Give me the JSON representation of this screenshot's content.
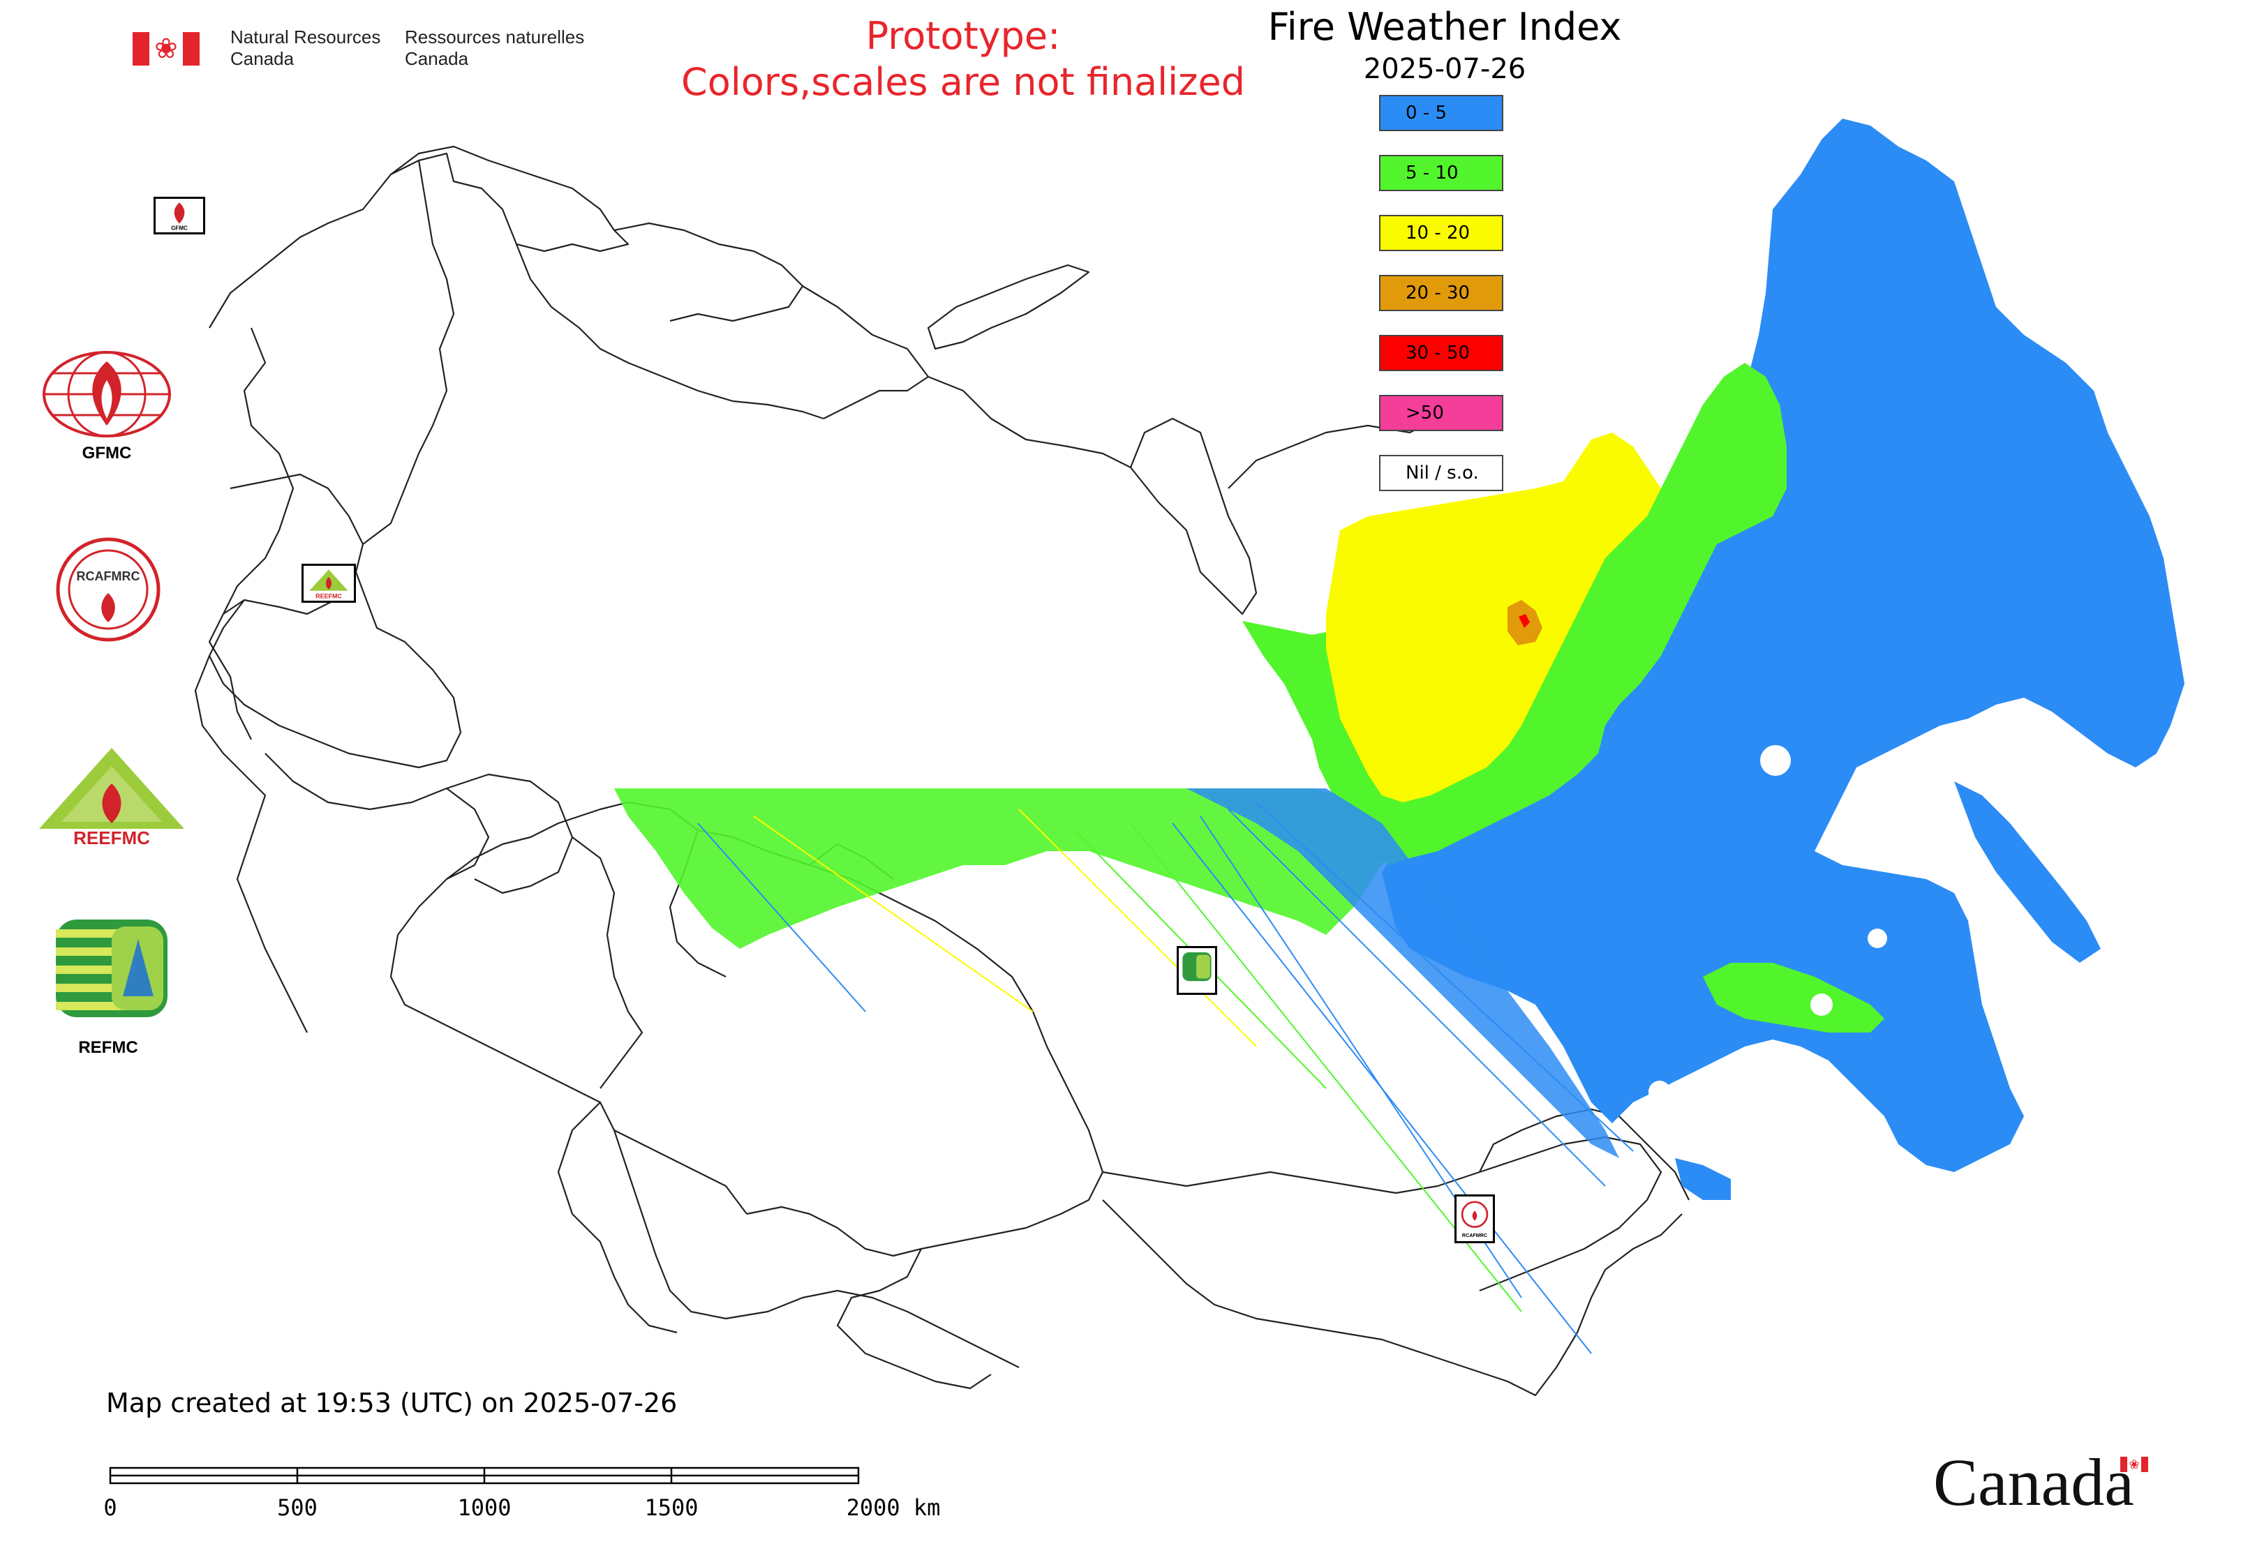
{
  "header": {
    "department_en": [
      "Natural Resources",
      "Canada"
    ],
    "department_fr": [
      "Ressources naturelles",
      "Canada"
    ],
    "prototype_line1": "Prototype:",
    "prototype_line2": "Colors,scales are not finalized",
    "prototype_color": "#e8252b"
  },
  "map_title": {
    "title": "Fire Weather Index",
    "date": "2025-07-26"
  },
  "legend": [
    {
      "label": "0 - 5",
      "color": "#2b8cf5"
    },
    {
      "label": "5 - 10",
      "color": "#52f52b"
    },
    {
      "label": "10 - 20",
      "color": "#fbfb00"
    },
    {
      "label": "20 - 30",
      "color": "#e09a0a"
    },
    {
      "label": "30 - 50",
      "color": "#fc0000"
    },
    {
      "label": ">50",
      "color": "#f53d9a"
    },
    {
      "label": "Nil / s.o.",
      "color": "#ffffff"
    }
  ],
  "partners": [
    {
      "id": "gfmc",
      "caption": "GFMC"
    },
    {
      "id": "rcafmrc",
      "caption": "RCAFMRC",
      "logo_text": "RCAFMRC"
    },
    {
      "id": "reefmc",
      "caption": "",
      "logo_text": "REEFMC"
    },
    {
      "id": "refmc",
      "caption": "REFMC"
    }
  ],
  "station_marker_labels": {
    "gfmc": "GFMC",
    "reefmc": "REEFMC",
    "rcafmrc": "RCAFMRC"
  },
  "footer": {
    "created_text": "Map created at 19:53 (UTC) on 2025-07-26",
    "scale_labels": [
      "0",
      "500",
      "1000",
      "1500",
      "2000 km"
    ],
    "wordmark": "Canada"
  },
  "colors": {
    "boundary": "#222222",
    "flag_red": "#e3242b"
  }
}
